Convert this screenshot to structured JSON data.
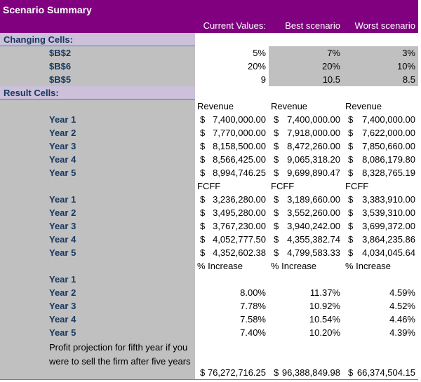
{
  "header": {
    "title": "Scenario Summary",
    "columns": [
      "Current Values:",
      "Best scenario",
      "Worst scenario"
    ]
  },
  "currency_symbol": "$",
  "changing_cells": {
    "label": "Changing Cells:",
    "rows": [
      {
        "label": "$B$2",
        "values": [
          "5%",
          "7%",
          "3%"
        ]
      },
      {
        "label": "$B$6",
        "values": [
          "20%",
          "20%",
          "10%"
        ]
      },
      {
        "label": "$B$5",
        "values": [
          "9",
          "10.5",
          "8.5"
        ]
      }
    ]
  },
  "result_cells": {
    "label": "Result Cells:",
    "sections": [
      {
        "headings": [
          "Revenue",
          "Revenue",
          "Revenue"
        ],
        "rows": [
          {
            "label": "Year 1",
            "values": [
              "7,400,000.00",
              "7,400,000.00",
              "7,400,000.00"
            ]
          },
          {
            "label": "Year 2",
            "values": [
              "7,770,000.00",
              "7,918,000.00",
              "7,622,000.00"
            ]
          },
          {
            "label": "Year 3",
            "values": [
              "8,158,500.00",
              "8,472,260.00",
              "7,850,660.00"
            ]
          },
          {
            "label": "Year 4",
            "values": [
              "8,566,425.00",
              "9,065,318.20",
              "8,086,179.80"
            ]
          },
          {
            "label": "Year 5",
            "values": [
              "8,994,746.25",
              "9,699,890.47",
              "8,328,765.19"
            ]
          }
        ]
      },
      {
        "headings": [
          "FCFF",
          "FCFF",
          "FCFF"
        ],
        "rows": [
          {
            "label": "Year 1",
            "values": [
              "3,236,280.00",
              "3,189,660.00",
              "3,383,910.00"
            ]
          },
          {
            "label": "Year 2",
            "values": [
              "3,495,280.00",
              "3,552,260.00",
              "3,539,310.00"
            ]
          },
          {
            "label": "Year 3",
            "values": [
              "3,767,230.00",
              "3,940,242.00",
              "3,699,372.00"
            ]
          },
          {
            "label": "Year 4",
            "values": [
              "4,052,777.50",
              "4,355,382.74",
              "3,864,235.86"
            ]
          },
          {
            "label": "Year 5",
            "values": [
              "4,352,602.38",
              "4,799,583.33",
              "4,034,045.64"
            ]
          }
        ]
      },
      {
        "headings": [
          "% Increase",
          "% Increase",
          "% Increase"
        ],
        "rows": [
          {
            "label": "Year 1",
            "values": [
              null,
              null,
              null
            ]
          },
          {
            "label": "Year 2",
            "values": [
              "8.00%",
              "11.37%",
              "4.59%"
            ]
          },
          {
            "label": "Year 3",
            "values": [
              "7.78%",
              "10.92%",
              "4.52%"
            ]
          },
          {
            "label": "Year 4",
            "values": [
              "7.58%",
              "10.54%",
              "4.46%"
            ]
          },
          {
            "label": "Year 5",
            "values": [
              "7.40%",
              "10.20%",
              "4.39%"
            ]
          }
        ]
      }
    ]
  },
  "profit_projection": {
    "label": "Profit projection for fifth year if you were to sell the firm after five years",
    "values": [
      "76,272,716.25",
      "96,388,849.98",
      "66,374,504.15"
    ]
  }
}
